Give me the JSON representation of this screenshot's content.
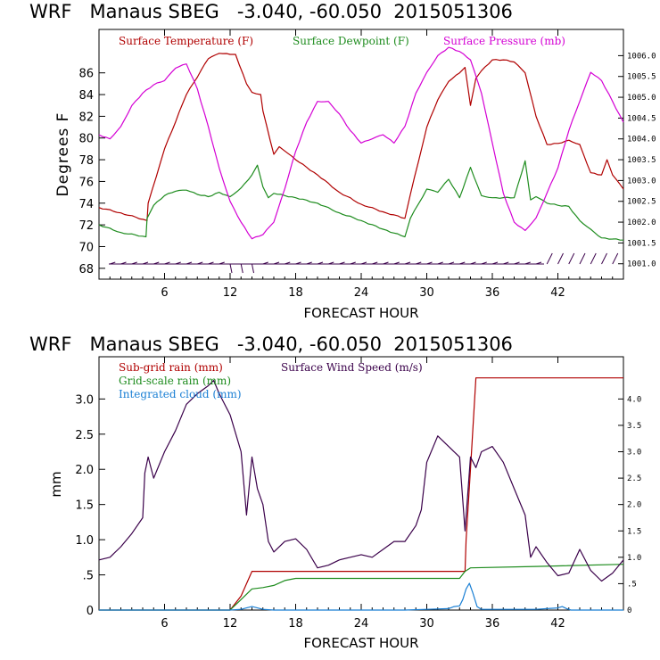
{
  "colors": {
    "temp": "#b00000",
    "dew": "#1e8c1e",
    "pres": "#d400d4",
    "wind": "#3a004a",
    "subrain": "#b00000",
    "gridrain": "#1e8c1e",
    "cloud": "#1a7fd4"
  },
  "chart_data": [
    {
      "type": "line",
      "title": "WRF   Manaus SBEG   -3.040, -60.050  2015051306",
      "xlabel": "FORECAST HOUR",
      "ylabel": "Degrees F",
      "xlim": [
        0,
        48
      ],
      "ylim": [
        67,
        90
      ],
      "xticks": [
        6,
        12,
        18,
        24,
        30,
        36,
        42
      ],
      "xtick_labels": [
        "6",
        "12",
        "18",
        "24",
        "30",
        "36",
        "42"
      ],
      "yticks": [
        68,
        70,
        72,
        74,
        76,
        78,
        80,
        82,
        84,
        86
      ],
      "ytick_labels": [
        "68",
        "70",
        "72",
        "74",
        "76",
        "78",
        "80",
        "82",
        "84",
        "86"
      ],
      "y2lim": [
        1000.63,
        1006.63
      ],
      "y2ticks": [
        1001.0,
        1001.5,
        1002.0,
        1002.5,
        1003.0,
        1003.5,
        1004.0,
        1004.5,
        1005.0,
        1005.5,
        1006.0
      ],
      "y2tick_labels": [
        "1001.0",
        "1001.5",
        "1002.0",
        "1002.5",
        "1003.0",
        "1003.5",
        "1004.0",
        "1004.5",
        "1005.0",
        "1005.5",
        "1006.0"
      ],
      "legend": [
        "Surface Temperature (F)",
        "Surface Dewpoint (F)",
        "Surface Pressure (mb)"
      ],
      "series": [
        {
          "name": "Surface Temperature (F)",
          "axis": "left",
          "x": [
            0,
            2,
            4.4,
            4.5,
            6,
            8,
            10,
            11,
            12,
            12.5,
            13.5,
            14,
            14.8,
            15,
            16,
            16.5,
            17,
            18,
            20,
            22,
            24,
            26,
            28,
            28.5,
            30,
            31,
            32,
            33,
            33.5,
            34,
            34.5,
            35,
            36,
            37,
            38,
            39,
            40,
            41,
            42,
            43,
            44,
            45,
            46,
            46.5,
            47,
            48
          ],
          "y": [
            73.6,
            73.1,
            72.4,
            74,
            79,
            84,
            87.3,
            87.8,
            87.7,
            87.7,
            85,
            84.2,
            84,
            82.5,
            78.5,
            79.2,
            78.8,
            78,
            76.6,
            75,
            73.9,
            73.2,
            72.6,
            74.8,
            81,
            83.5,
            85.2,
            86,
            86.5,
            83,
            85.5,
            86.2,
            87.2,
            87.2,
            87,
            86,
            82,
            79.4,
            79.5,
            79.8,
            79.4,
            76.8,
            76.6,
            78,
            76.6,
            75.3
          ]
        },
        {
          "name": "Surface Dewpoint (F)",
          "axis": "left",
          "x": [
            0,
            2,
            4.3,
            4.4,
            5,
            6,
            7,
            8,
            9,
            10,
            11,
            12,
            13,
            14,
            14.5,
            15,
            15.5,
            16,
            18,
            20,
            22,
            24,
            26,
            28,
            28.5,
            30,
            31,
            32,
            33,
            34,
            35,
            36,
            38,
            39,
            39.5,
            40,
            41,
            42,
            43,
            44,
            45,
            46,
            47,
            48
          ],
          "y": [
            72.0,
            71.3,
            70.9,
            72.6,
            73.8,
            74.7,
            75.1,
            75.2,
            74.8,
            74.6,
            75,
            74.6,
            75.4,
            76.6,
            77.5,
            75.5,
            74.5,
            74.9,
            74.5,
            74.0,
            73.1,
            72.4,
            71.6,
            70.9,
            72.6,
            75.3,
            75,
            76.2,
            74.5,
            77.3,
            74.7,
            74.5,
            74.5,
            77.9,
            74.3,
            74.6,
            74.0,
            73.8,
            73.7,
            72.4,
            71.6,
            70.8,
            70.7,
            70.6
          ]
        },
        {
          "name": "Surface Pressure (mb)",
          "axis": "right",
          "x": [
            0,
            1,
            2,
            3,
            4,
            5,
            6,
            7,
            8,
            9,
            10,
            11,
            12,
            13,
            14,
            15,
            16,
            17,
            18,
            19,
            20,
            21,
            22,
            23,
            24,
            25,
            26,
            27,
            28,
            29,
            30,
            31,
            32,
            33,
            34,
            35,
            36,
            37,
            38,
            39,
            40,
            41,
            42,
            43,
            44,
            45,
            46,
            47,
            48
          ],
          "y": [
            1004.1,
            1004.0,
            1004.3,
            1004.8,
            1005.1,
            1005.3,
            1005.4,
            1005.7,
            1005.8,
            1005.2,
            1004.3,
            1003.3,
            1002.5,
            1002.0,
            1001.6,
            1001.7,
            1002.0,
            1002.8,
            1003.7,
            1004.4,
            1004.9,
            1004.9,
            1004.6,
            1004.2,
            1003.9,
            1004.0,
            1004.1,
            1003.9,
            1004.3,
            1005.1,
            1005.6,
            1006.0,
            1006.2,
            1006.1,
            1005.9,
            1005.1,
            1003.9,
            1002.7,
            1002.0,
            1001.8,
            1002.1,
            1002.7,
            1003.3,
            1004.2,
            1004.9,
            1005.6,
            1005.4,
            1004.9,
            1004.4
          ]
        }
      ]
    },
    {
      "type": "line",
      "title": "WRF   Manaus SBEG   -3.040, -60.050  2015051306",
      "xlabel": "FORECAST HOUR",
      "ylabel": "mm",
      "xlim": [
        0,
        48
      ],
      "ylim": [
        0,
        3.6
      ],
      "xticks": [
        6,
        12,
        18,
        24,
        30,
        36,
        42
      ],
      "xtick_labels": [
        "6",
        "12",
        "18",
        "24",
        "30",
        "36",
        "42"
      ],
      "yticks": [
        0,
        0.5,
        1.0,
        1.5,
        2.0,
        2.5,
        3.0
      ],
      "ytick_labels": [
        "0",
        ".5",
        "1.0",
        "1.5",
        "2.0",
        "2.5",
        "3.0"
      ],
      "y2lim": [
        0,
        4.8
      ],
      "y2ticks": [
        0,
        0.5,
        1.0,
        1.5,
        2.0,
        2.5,
        3.0,
        3.5,
        4.0
      ],
      "y2tick_labels": [
        "0",
        ".5",
        "1.0",
        "1.5",
        "2.0",
        "2.5",
        "3.0",
        "3.5",
        "4.0"
      ],
      "legend": [
        "Sub-grid rain (mm)",
        "Grid-scale rain (mm)",
        "Integrated cloud (mm)",
        "Surface Wind Speed (m/s)"
      ],
      "series": [
        {
          "name": "Sub-grid rain (mm)",
          "axis": "left",
          "x": [
            0,
            12,
            13,
            14,
            14.2,
            20,
            33.5,
            33.6,
            34,
            34.5,
            48
          ],
          "y": [
            0,
            0,
            0.2,
            0.55,
            0.55,
            0.55,
            0.55,
            1.0,
            2.0,
            3.3,
            3.3
          ]
        },
        {
          "name": "Grid-scale rain (mm)",
          "axis": "left",
          "x": [
            0,
            12,
            13,
            14,
            15,
            16,
            17,
            18,
            22,
            26,
            30,
            33,
            33.5,
            34,
            40,
            48
          ],
          "y": [
            0,
            0,
            0.15,
            0.3,
            0.32,
            0.35,
            0.42,
            0.45,
            0.45,
            0.45,
            0.45,
            0.45,
            0.55,
            0.6,
            0.62,
            0.65
          ]
        },
        {
          "name": "Integrated cloud (mm)",
          "axis": "left",
          "x": [
            0,
            12,
            13,
            13.5,
            14,
            14.5,
            15,
            16,
            28,
            30,
            32,
            32.5,
            33,
            33.3,
            33.6,
            33.9,
            34.2,
            34.6,
            35,
            40,
            41,
            42,
            42.4,
            42.8,
            43.2,
            48
          ],
          "y": [
            0,
            0,
            0.01,
            0.03,
            0.05,
            0.03,
            0.01,
            0,
            0,
            0.01,
            0.02,
            0.05,
            0.06,
            0.15,
            0.3,
            0.38,
            0.25,
            0.05,
            0.01,
            0.01,
            0.02,
            0.03,
            0.05,
            0.02,
            0,
            0
          ]
        },
        {
          "name": "Surface Wind Speed (m/s)",
          "axis": "right",
          "x": [
            0,
            1,
            2,
            3,
            4,
            4.2,
            4.5,
            5,
            6,
            7,
            8,
            9,
            10,
            10.5,
            11,
            12,
            13,
            13.5,
            14,
            14.5,
            15,
            15.5,
            16,
            17,
            18,
            19,
            20,
            21,
            22,
            23,
            24,
            25,
            26,
            27,
            28,
            29,
            29.5,
            30,
            31,
            32,
            33,
            33.5,
            34,
            34.5,
            35,
            36,
            37,
            38,
            39,
            39.5,
            40,
            41,
            42,
            43,
            44,
            45,
            46,
            47,
            48
          ],
          "y": [
            0.95,
            1.0,
            1.2,
            1.45,
            1.75,
            2.6,
            2.9,
            2.5,
            3.0,
            3.4,
            3.9,
            4.1,
            4.25,
            4.35,
            4.1,
            3.7,
            3.0,
            1.8,
            2.9,
            2.3,
            2.0,
            1.3,
            1.1,
            1.3,
            1.35,
            1.15,
            0.8,
            0.85,
            0.95,
            1.0,
            1.05,
            1.0,
            1.15,
            1.3,
            1.3,
            1.6,
            1.9,
            2.8,
            3.3,
            3.1,
            2.9,
            1.5,
            2.9,
            2.7,
            3.0,
            3.1,
            2.8,
            2.3,
            1.8,
            1.0,
            1.2,
            0.9,
            0.65,
            0.7,
            1.15,
            0.75,
            0.55,
            0.7,
            0.95
          ]
        }
      ]
    }
  ]
}
